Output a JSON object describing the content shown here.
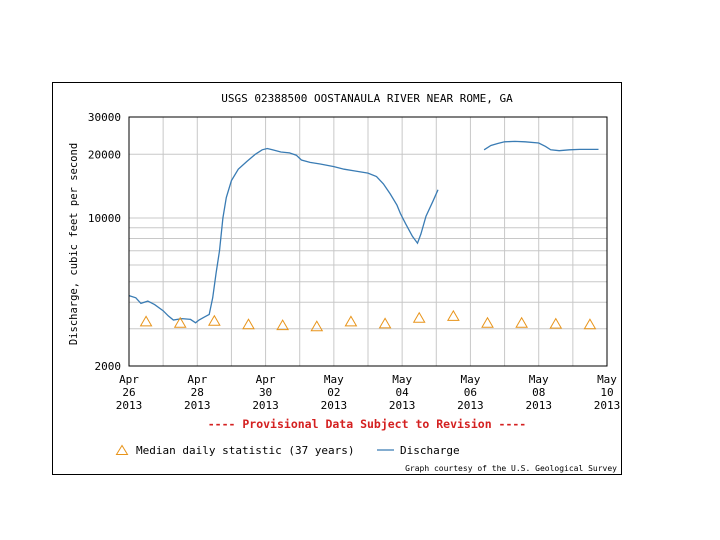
{
  "chart_data": {
    "type": "line",
    "title": "USGS 02388500 OOSTANAULA RIVER NEAR ROME, GA",
    "ylabel": "Discharge, cubic feet per second",
    "xlabel": "",
    "y_scale": "log",
    "ylim": [
      2000,
      30000
    ],
    "y_ticks": [
      {
        "value": 30000,
        "label": "30000"
      },
      {
        "value": 20000,
        "label": "20000"
      },
      {
        "value": 10000,
        "label": "10000"
      },
      {
        "value": 2000,
        "label": "2000"
      }
    ],
    "x_ticks": [
      {
        "day": 0,
        "month": "Apr",
        "date": "26",
        "year": "2013"
      },
      {
        "day": 2,
        "month": "Apr",
        "date": "28",
        "year": "2013"
      },
      {
        "day": 4,
        "month": "Apr",
        "date": "30",
        "year": "2013"
      },
      {
        "day": 6,
        "month": "May",
        "date": "02",
        "year": "2013"
      },
      {
        "day": 8,
        "month": "May",
        "date": "04",
        "year": "2013"
      },
      {
        "day": 10,
        "month": "May",
        "date": "06",
        "year": "2013"
      },
      {
        "day": 12,
        "month": "May",
        "date": "08",
        "year": "2013"
      },
      {
        "day": 14,
        "month": "May",
        "date": "10",
        "year": "2013"
      }
    ],
    "xlim": [
      0,
      14
    ],
    "grid": true,
    "discharge_color": "#3a7cb4",
    "median_color": "#e8941a",
    "series": [
      {
        "name": "Discharge",
        "segments": [
          [
            [
              0,
              4300
            ],
            [
              0.2,
              4200
            ],
            [
              0.35,
              3950
            ],
            [
              0.55,
              4050
            ],
            [
              0.75,
              3900
            ],
            [
              1.0,
              3650
            ],
            [
              1.15,
              3450
            ],
            [
              1.3,
              3300
            ],
            [
              1.55,
              3350
            ],
            [
              1.8,
              3320
            ],
            [
              1.95,
              3200
            ],
            [
              2.05,
              3300
            ],
            [
              2.2,
              3400
            ],
            [
              2.35,
              3500
            ],
            [
              2.45,
              4200
            ],
            [
              2.55,
              5500
            ],
            [
              2.65,
              7000
            ],
            [
              2.75,
              10000
            ],
            [
              2.85,
              12500
            ],
            [
              3.0,
              15000
            ],
            [
              3.2,
              17000
            ],
            [
              3.45,
              18500
            ],
            [
              3.7,
              20000
            ],
            [
              3.9,
              21000
            ],
            [
              4.05,
              21300
            ],
            [
              4.2,
              21000
            ],
            [
              4.45,
              20500
            ],
            [
              4.7,
              20300
            ],
            [
              4.9,
              19800
            ],
            [
              5.05,
              18800
            ],
            [
              5.3,
              18300
            ],
            [
              5.6,
              18000
            ],
            [
              6.0,
              17500
            ],
            [
              6.3,
              17000
            ],
            [
              6.6,
              16700
            ],
            [
              7.0,
              16300
            ],
            [
              7.25,
              15700
            ],
            [
              7.45,
              14500
            ],
            [
              7.65,
              13000
            ],
            [
              7.85,
              11500
            ],
            [
              7.95,
              10500
            ],
            [
              8.1,
              9400
            ],
            [
              8.3,
              8200
            ],
            [
              8.45,
              7600
            ],
            [
              8.55,
              8400
            ],
            [
              8.7,
              10200
            ],
            [
              8.9,
              12000
            ],
            [
              9.05,
              13600
            ]
          ],
          [
            [
              10.4,
              21000
            ],
            [
              10.6,
              22000
            ],
            [
              10.8,
              22500
            ],
            [
              11.0,
              22900
            ],
            [
              11.3,
              23000
            ],
            [
              11.6,
              22900
            ],
            [
              12.0,
              22600
            ],
            [
              12.2,
              21800
            ],
            [
              12.35,
              21000
            ],
            [
              12.6,
              20800
            ],
            [
              12.9,
              21000
            ],
            [
              13.2,
              21100
            ],
            [
              13.5,
              21100
            ],
            [
              13.75,
              21100
            ]
          ]
        ]
      },
      {
        "name": "Median daily statistic (37 years)",
        "points": [
          [
            0.5,
            3250
          ],
          [
            1.5,
            3200
          ],
          [
            2.5,
            3270
          ],
          [
            3.5,
            3150
          ],
          [
            4.5,
            3120
          ],
          [
            5.5,
            3080
          ],
          [
            6.5,
            3250
          ],
          [
            7.5,
            3180
          ],
          [
            8.5,
            3380
          ],
          [
            9.5,
            3450
          ],
          [
            10.5,
            3200
          ],
          [
            11.5,
            3200
          ],
          [
            12.5,
            3170
          ],
          [
            13.5,
            3150
          ]
        ]
      }
    ]
  },
  "banner": "---- Provisional Data Subject to Revision ----",
  "legend": {
    "median_label": "Median daily statistic (37 years)",
    "discharge_label": "Discharge"
  },
  "credit": "Graph courtesy of the U.S. Geological Survey",
  "colors": {
    "banner": "#d42020",
    "grid": "#c8c8c8"
  }
}
